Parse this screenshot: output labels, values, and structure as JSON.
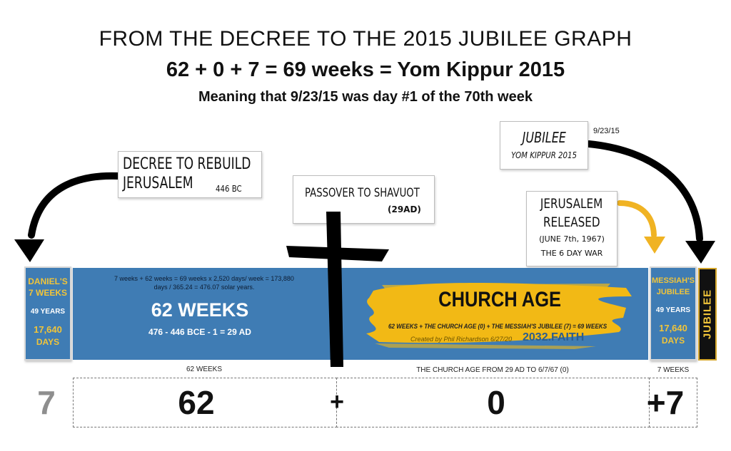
{
  "header": {
    "title": "FROM THE DECREE TO THE 2015 JUBILEE GRAPH",
    "headline": "62 + 0 + 7 = 69 weeks = Yom Kippur 2015",
    "subhead": "Meaning that 9/23/15 was day #1 of the 70th week"
  },
  "callouts": {
    "decree": {
      "line1": "DECREE TO REBUILD",
      "line2": "JERUSALEM",
      "date": "446 BC"
    },
    "passover": {
      "line1": "PASSOVER TO SHAVUOT",
      "line2": "(29AD)"
    },
    "jubilee": {
      "line1": "JUBILEE",
      "line2": "YOM KIPPUR 2015",
      "date": "9/23/15"
    },
    "jerusalem": {
      "line1": "JERUSALEM",
      "line2": "RELEASED",
      "line3": "(JUNE 7th, 1967)",
      "line4": "THE 6 DAY WAR"
    }
  },
  "timeline": {
    "daniels": {
      "line1": "DANIEL'S",
      "line2": "7 WEEKS",
      "years": "49 YEARS",
      "days_num": "17,640",
      "days_word": "DAYS"
    },
    "sixtytwo": {
      "note1": "7 weeks + 62 weeks = 69 weeks x 2,520 days/ week = 173,880",
      "note2": "days / 365.24 = 476.07 solar years.",
      "title": "62 WEEKS",
      "range": "476 - 446 BCE - 1 = 29 AD"
    },
    "church": {
      "title": "CHURCH AGE",
      "formula": "62 WEEKS + THE CHURCH AGE (0) + THE MESSIAH'S JUBILEE (7) = 69 WEEKS",
      "credit": "Created by Phil Richardson  6/27/20",
      "site": "2032.FAITH"
    },
    "messiah": {
      "line1": "MESSIAH'S",
      "line2": "JUBILEE",
      "years": "49 YEARS",
      "days_num": "17,640",
      "days_word": "DAYS"
    },
    "jubilee_tab": "JUBILEE"
  },
  "segments": {
    "label_62": "62 WEEKS",
    "label_church": "THE CHURCH AGE FROM 29 AD TO 6/7/67 (0)",
    "label_7": "7 WEEKS",
    "num_7_left": "7",
    "num_62": "62",
    "plus_1": "+",
    "num_0": "0",
    "plus_7": "+7"
  },
  "colors": {
    "band_blue": "#3f7cb4",
    "gold": "#f0c43a",
    "brush_yellow": "#f2b915",
    "black": "#000000"
  }
}
